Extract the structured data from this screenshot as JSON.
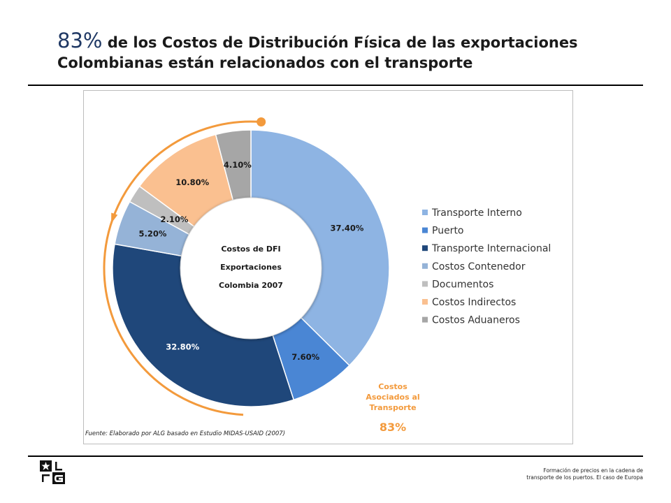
{
  "header": {
    "title_pct": "83%",
    "title_line1": " de los Costos de Distribución Física de las exportaciones",
    "title_line2": "Colombianas están relacionados con el transporte"
  },
  "chart_data": {
    "type": "pie",
    "donut": true,
    "center_label": [
      "Costos de DFI",
      "Exportaciones",
      "Colombia 2007"
    ],
    "categories": [
      "Transporte Interno",
      "Puerto",
      "Transporte Internacional",
      "Costos Contenedor",
      "Documentos",
      "Costos Indirectos",
      "Costos Aduaneros"
    ],
    "values": [
      37.4,
      7.6,
      32.8,
      5.2,
      2.1,
      10.8,
      4.1
    ],
    "value_labels": [
      "37.40%",
      "7.60%",
      "32.80%",
      "5.20%",
      "2.10%",
      "10.80%",
      "4.10%"
    ],
    "colors": [
      "#8eb4e3",
      "#4a86d4",
      "#1f477a",
      "#95b3d7",
      "#bfbfbf",
      "#fac090",
      "#a6a6a6"
    ],
    "label_colors": [
      "#1a1a1a",
      "#1a1a1a",
      "#ffffff",
      "#1a1a1a",
      "#1a1a1a",
      "#1a1a1a",
      "#1a1a1a"
    ],
    "legend_position": "right",
    "annotation": {
      "lines": [
        "Costos",
        "Asociados al",
        "Transporte"
      ],
      "value": "83%",
      "color": "#f39a3c"
    }
  },
  "source": "Fuente: Elaborado por ALG basado en Estudio MIDAS-USAID (2007)",
  "footer": {
    "line1": "Formación de precios en la cadena de",
    "line2": "transporte de los puertos. El caso de Europa"
  }
}
